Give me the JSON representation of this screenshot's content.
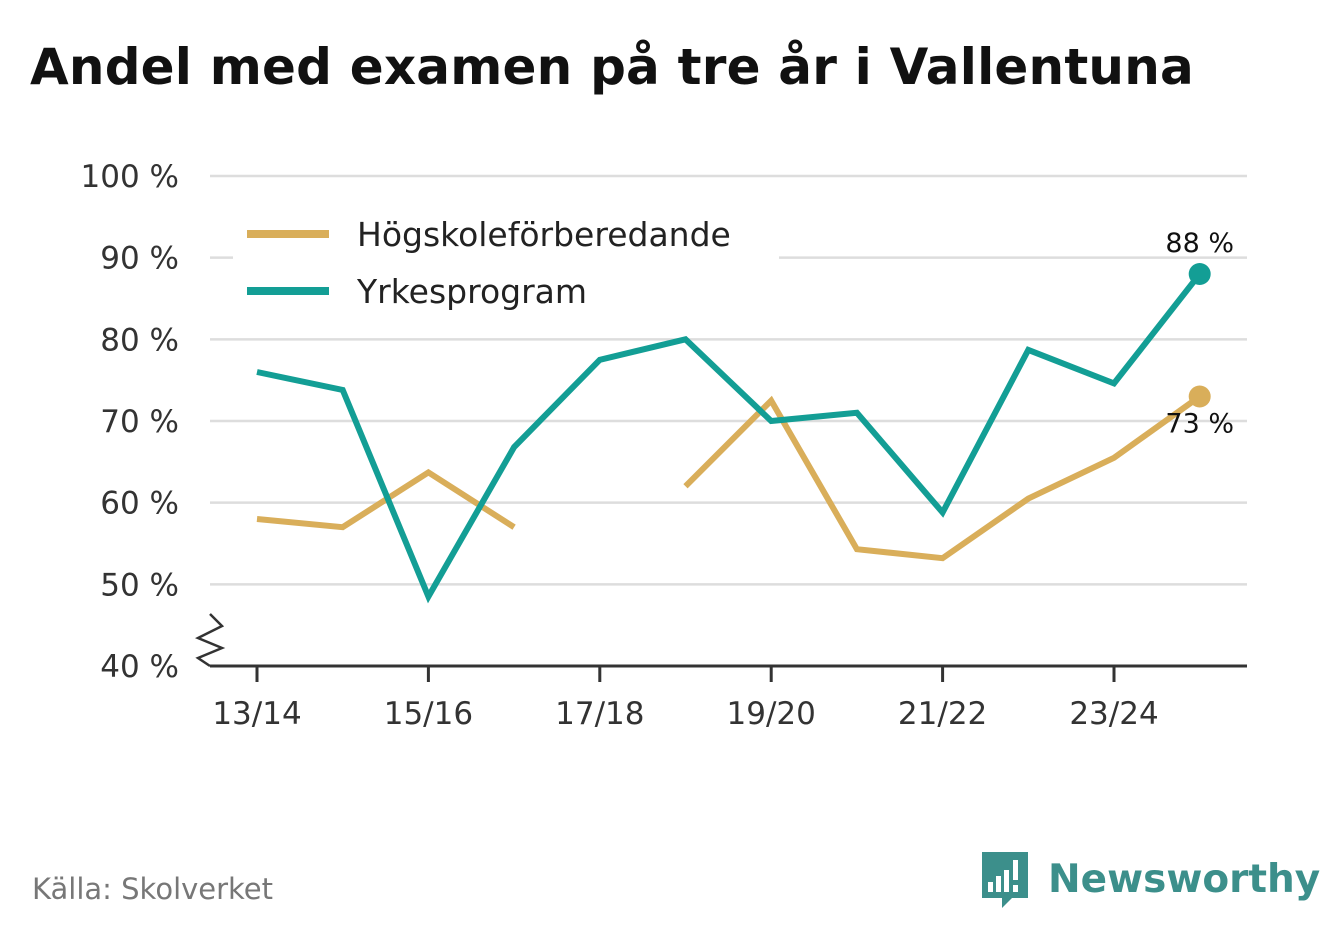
{
  "title": "Andel med examen på tre år i Vallentuna",
  "source": "Källa: Skolverket",
  "brand": {
    "name": "Newsworthy",
    "icon": "newsworthy-logo-icon",
    "color": "#3c8f8b"
  },
  "colors": {
    "hogskole": "#d9ae5a",
    "yrkes": "#139e95",
    "grid": "#dddddd",
    "axis": "#333333"
  },
  "chart_data": {
    "type": "line",
    "title": "Andel med examen på tre år i Vallentuna",
    "xlabel": "",
    "ylabel": "",
    "categories": [
      "13/14",
      "14/15",
      "15/16",
      "16/17",
      "17/18",
      "18/19",
      "19/20",
      "20/21",
      "21/22",
      "22/23",
      "23/24",
      "24/25"
    ],
    "x_tick_labels": [
      "13/14",
      "15/16",
      "17/18",
      "19/20",
      "21/22",
      "23/24"
    ],
    "x_tick_indices": [
      0,
      2,
      4,
      6,
      8,
      10
    ],
    "ylim": [
      40,
      100
    ],
    "y_ticks": [
      40,
      50,
      60,
      70,
      80,
      90,
      100
    ],
    "y_tick_labels": [
      "40 %",
      "50 %",
      "60 %",
      "70 %",
      "80 %",
      "90 %",
      "100 %"
    ],
    "axis_break": true,
    "grid": true,
    "legend_position": "top-left",
    "series": [
      {
        "name": "Högskoleförberedande",
        "color": "#d9ae5a",
        "values": [
          58,
          57,
          63.7,
          57,
          null,
          62,
          72.5,
          54.3,
          53.2,
          60.5,
          65.5,
          73
        ],
        "end_label": "73 %"
      },
      {
        "name": "Yrkesprogram",
        "color": "#139e95",
        "values": [
          76,
          73.8,
          48.5,
          66.8,
          77.5,
          80,
          70,
          71,
          58.8,
          78.7,
          74.6,
          88
        ],
        "end_label": "88 %"
      }
    ]
  }
}
